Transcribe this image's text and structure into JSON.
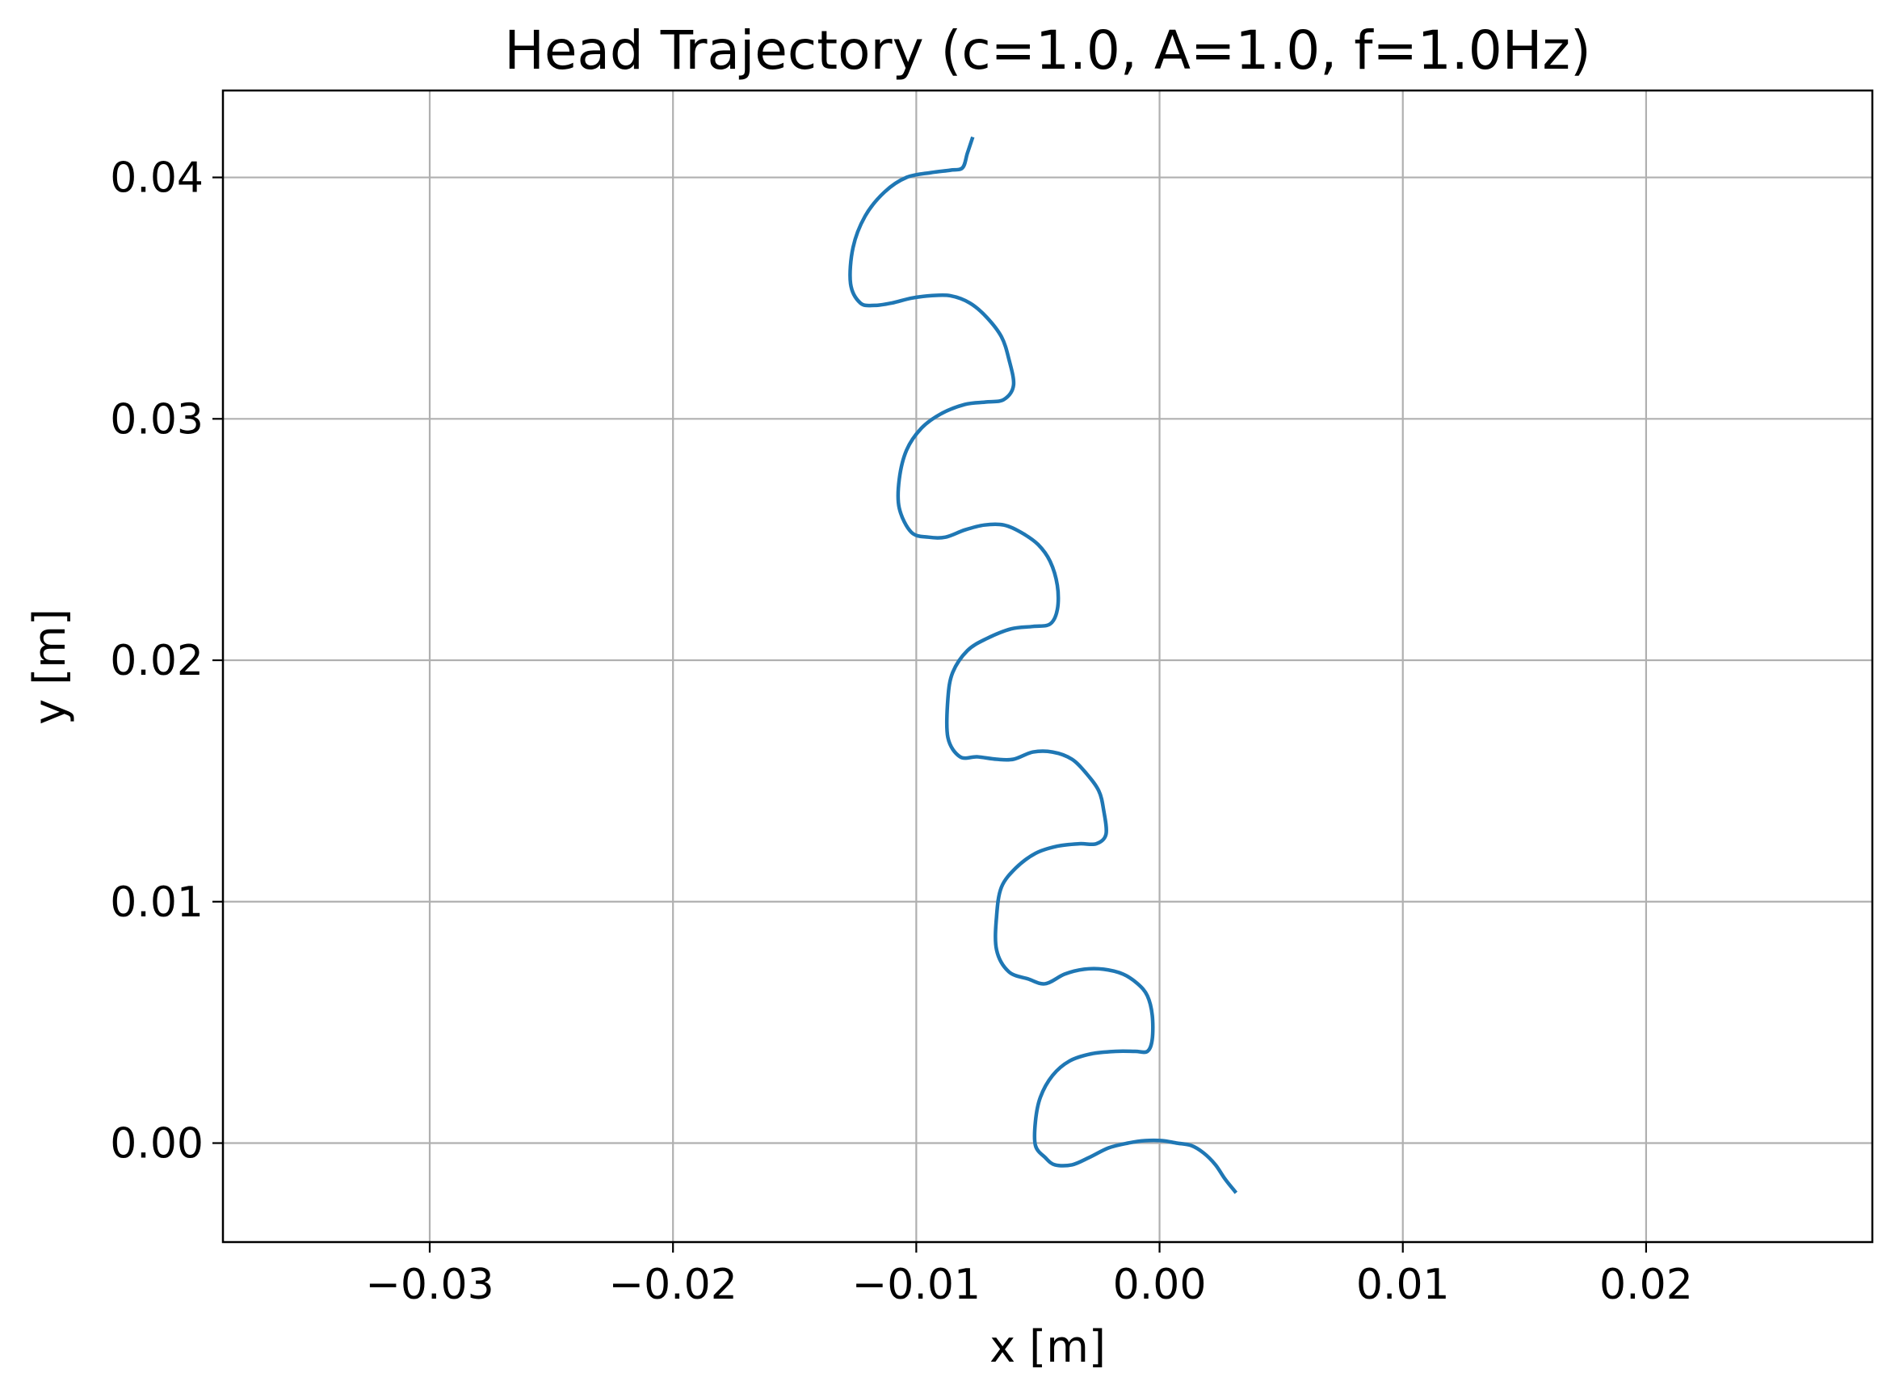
{
  "chart_data": {
    "type": "line",
    "title": "Head Trajectory (c=1.0, A=1.0, f=1.0Hz)",
    "xlabel": "x [m]",
    "ylabel": "y [m]",
    "xlim": [
      -0.0385,
      0.0293
    ],
    "ylim": [
      -0.0041,
      0.0436
    ],
    "xticks": [
      -0.03,
      -0.02,
      -0.01,
      0.0,
      0.01,
      0.02
    ],
    "xtick_labels": [
      "−0.03",
      "−0.02",
      "−0.01",
      "0.00",
      "0.01",
      "0.02"
    ],
    "yticks": [
      0.0,
      0.01,
      0.02,
      0.03,
      0.04
    ],
    "ytick_labels": [
      "0.00",
      "0.01",
      "0.02",
      "0.03",
      "0.04"
    ],
    "grid": true,
    "legend": "none",
    "series": [
      {
        "color": "#1f77b4",
        "x": [
          0.0031,
          0.0027,
          0.0023,
          0.0018,
          0.0013,
          0.0007,
          0.0001,
          -0.0006,
          -0.0013,
          -0.0021,
          -0.0029,
          -0.0036,
          -0.0043,
          -0.0047,
          -0.0051,
          -0.0051,
          -0.0049,
          -0.0044,
          -0.0037,
          -0.0028,
          -0.0018,
          -0.001,
          -0.0005,
          -0.0003,
          -0.0003,
          -0.0005,
          -0.0009,
          -0.0015,
          -0.0023,
          -0.0031,
          -0.0039,
          -0.0047,
          -0.0054,
          -0.0062,
          -0.0067,
          -0.0067,
          -0.0065,
          -0.0059,
          -0.0051,
          -0.0042,
          -0.0033,
          -0.0026,
          -0.0022,
          -0.0023,
          -0.0025,
          -0.003,
          -0.0036,
          -0.0044,
          -0.0052,
          -0.006,
          -0.0067,
          -0.0075,
          -0.0082,
          -0.0087,
          -0.0087,
          -0.0085,
          -0.0079,
          -0.0071,
          -0.0061,
          -0.0052,
          -0.0045,
          -0.0042,
          -0.0042,
          -0.0045,
          -0.005,
          -0.0057,
          -0.0064,
          -0.0072,
          -0.008,
          -0.0088,
          -0.0095,
          -0.0102,
          -0.0107,
          -0.0107,
          -0.0104,
          -0.0098,
          -0.009,
          -0.008,
          -0.0071,
          -0.0064,
          -0.006,
          -0.0062,
          -0.0065,
          -0.0071,
          -0.0078,
          -0.0086,
          -0.0094,
          -0.0102,
          -0.011,
          -0.0117,
          -0.0123,
          -0.0127,
          -0.0126,
          -0.0121,
          -0.0113,
          -0.0104,
          -0.0094,
          -0.0086,
          -0.0081,
          -0.0079,
          -0.0077
        ],
        "y": [
          -0.002,
          -0.0015,
          -0.0009,
          -0.0004,
          -0.0001,
          0.0,
          0.0001,
          0.0001,
          0.0,
          -0.0002,
          -0.0006,
          -0.0009,
          -0.0009,
          -0.0006,
          -0.0001,
          0.0009,
          0.0019,
          0.0028,
          0.0034,
          0.0037,
          0.0038,
          0.0038,
          0.0038,
          0.0043,
          0.0053,
          0.0061,
          0.0066,
          0.007,
          0.0072,
          0.0072,
          0.007,
          0.0066,
          0.0068,
          0.0071,
          0.008,
          0.0094,
          0.0106,
          0.0114,
          0.012,
          0.0123,
          0.0124,
          0.0124,
          0.0128,
          0.0138,
          0.0146,
          0.0153,
          0.0159,
          0.0162,
          0.0162,
          0.0159,
          0.0159,
          0.016,
          0.016,
          0.0168,
          0.0184,
          0.0195,
          0.0204,
          0.0209,
          0.0213,
          0.0214,
          0.0215,
          0.0221,
          0.0231,
          0.0241,
          0.0248,
          0.0253,
          0.0256,
          0.0256,
          0.0254,
          0.0251,
          0.0251,
          0.0253,
          0.0263,
          0.0275,
          0.0287,
          0.0296,
          0.0302,
          0.0306,
          0.0307,
          0.0308,
          0.0314,
          0.0325,
          0.0334,
          0.0342,
          0.0348,
          0.0351,
          0.0351,
          0.035,
          0.0348,
          0.0347,
          0.0348,
          0.0356,
          0.0371,
          0.0384,
          0.0394,
          0.04,
          0.0402,
          0.0403,
          0.0404,
          0.041,
          0.0416
        ]
      }
    ]
  }
}
